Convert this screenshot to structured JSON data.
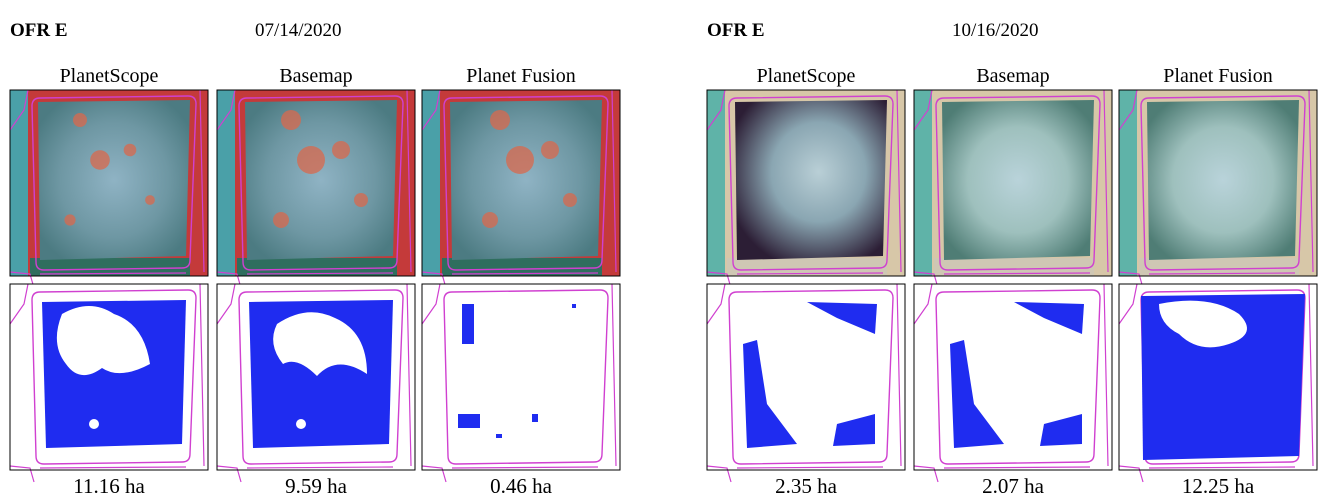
{
  "panels": [
    {
      "site": "OFR E",
      "date": "07/14/2020",
      "columns": [
        "PlanetScope",
        "Basemap",
        "Planet Fusion"
      ],
      "areas": [
        "11.16 ha",
        "9.59 ha",
        "0.46 ha"
      ]
    },
    {
      "site": "OFR E",
      "date": "10/16/2020",
      "columns": [
        "PlanetScope",
        "Basemap",
        "Planet Fusion"
      ],
      "areas": [
        "2.35 ha",
        "2.07 ha",
        "12.25 ha"
      ]
    }
  ]
}
